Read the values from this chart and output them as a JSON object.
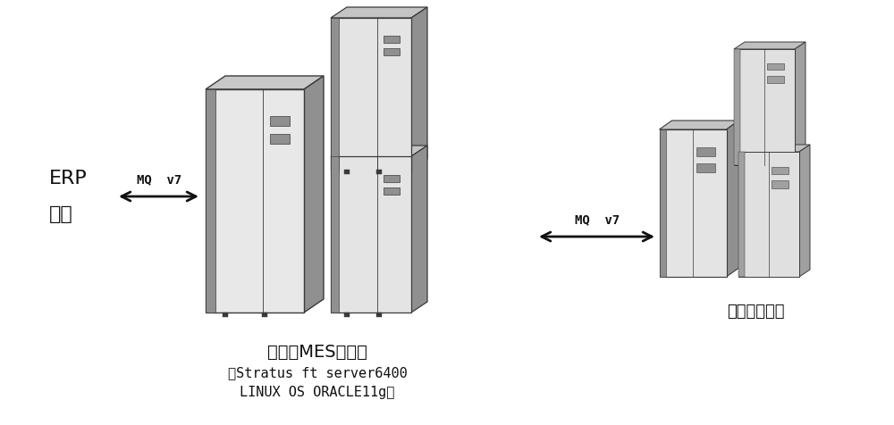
{
  "bg_color": "#ffffff",
  "left_labels": [
    "ERP",
    "炼钢"
  ],
  "arrow1_label": "MQ  v7",
  "arrow2_label": "MQ  v7",
  "label_bottom1_line1": "三级新MES服务器",
  "label_bottom1_line2": "（Stratus ft server6400",
  "label_bottom1_line3": "LINUX OS ORACLE11g）",
  "label_bottom2": "二级新服务器",
  "color_front": "#e8e8e8",
  "color_side_dark": "#808080",
  "color_top": "#d0d0d0",
  "color_edge": "#444444",
  "color_panel_dark": "#aaaaaa",
  "color_panel_light": "#cccccc"
}
